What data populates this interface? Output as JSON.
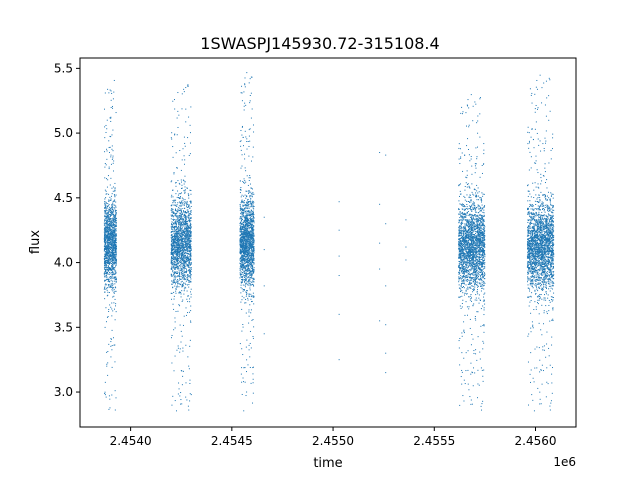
{
  "chart_data": {
    "type": "scatter",
    "title": "1SWASPJ145930.72-315108.4",
    "xlabel": "time",
    "ylabel": "flux",
    "x_offset_label": "1e6",
    "x_scale": 1000000,
    "xlim": [
      2.45375,
      2.4562
    ],
    "ylim": [
      2.73,
      5.58
    ],
    "x_ticks": [
      {
        "value": 2.454,
        "label": "2.4540"
      },
      {
        "value": 2.4545,
        "label": "2.4545"
      },
      {
        "value": 2.455,
        "label": "2.4550"
      },
      {
        "value": 2.4555,
        "label": "2.4555"
      },
      {
        "value": 2.456,
        "label": "2.4560"
      }
    ],
    "y_ticks": [
      {
        "value": 3.0,
        "label": "3.0"
      },
      {
        "value": 3.5,
        "label": "3.5"
      },
      {
        "value": 4.0,
        "label": "4.0"
      },
      {
        "value": 4.5,
        "label": "4.5"
      },
      {
        "value": 5.0,
        "label": "5.0"
      },
      {
        "value": 5.5,
        "label": "5.5"
      }
    ],
    "grid": false,
    "marker_color": "#1f77b4",
    "series": [
      {
        "points_summary": "dense observing seasons, flux mostly between ~3.7 and ~4.6 centered near 4.15, with sparse outliers from ~2.85 up to ~5.45",
        "clusters": [
          {
            "x_start": 2.45387,
            "x_end": 2.45393,
            "y_center": 4.15,
            "y_min": 2.85,
            "y_max": 5.42,
            "n": 1400
          },
          {
            "x_start": 2.4542,
            "x_end": 2.4543,
            "y_center": 4.15,
            "y_min": 2.85,
            "y_max": 5.4,
            "n": 1800
          },
          {
            "x_start": 2.45454,
            "x_end": 2.45461,
            "y_center": 4.15,
            "y_min": 2.85,
            "y_max": 5.47,
            "n": 1700
          },
          {
            "x_start": 2.45562,
            "x_end": 2.45575,
            "y_center": 4.12,
            "y_min": 2.85,
            "y_max": 5.3,
            "n": 2300
          },
          {
            "x_start": 2.45596,
            "x_end": 2.45609,
            "y_center": 4.12,
            "y_min": 2.85,
            "y_max": 5.45,
            "n": 2300
          }
        ],
        "sparse_points": [
          [
            2.45466,
            4.35
          ],
          [
            2.45466,
            4.1
          ],
          [
            2.45466,
            3.82
          ],
          [
            2.45466,
            3.45
          ],
          [
            2.45503,
            4.47
          ],
          [
            2.45503,
            4.25
          ],
          [
            2.45503,
            4.05
          ],
          [
            2.45503,
            3.9
          ],
          [
            2.45503,
            3.6
          ],
          [
            2.45503,
            3.25
          ],
          [
            2.45523,
            4.85
          ],
          [
            2.45523,
            4.45
          ],
          [
            2.45523,
            4.15
          ],
          [
            2.45523,
            3.95
          ],
          [
            2.45523,
            3.55
          ],
          [
            2.45526,
            4.83
          ],
          [
            2.45526,
            4.3
          ],
          [
            2.45526,
            3.82
          ],
          [
            2.45526,
            3.52
          ],
          [
            2.45526,
            3.3
          ],
          [
            2.45526,
            3.15
          ],
          [
            2.45536,
            4.33
          ],
          [
            2.45536,
            4.12
          ],
          [
            2.45536,
            4.02
          ]
        ]
      }
    ]
  }
}
